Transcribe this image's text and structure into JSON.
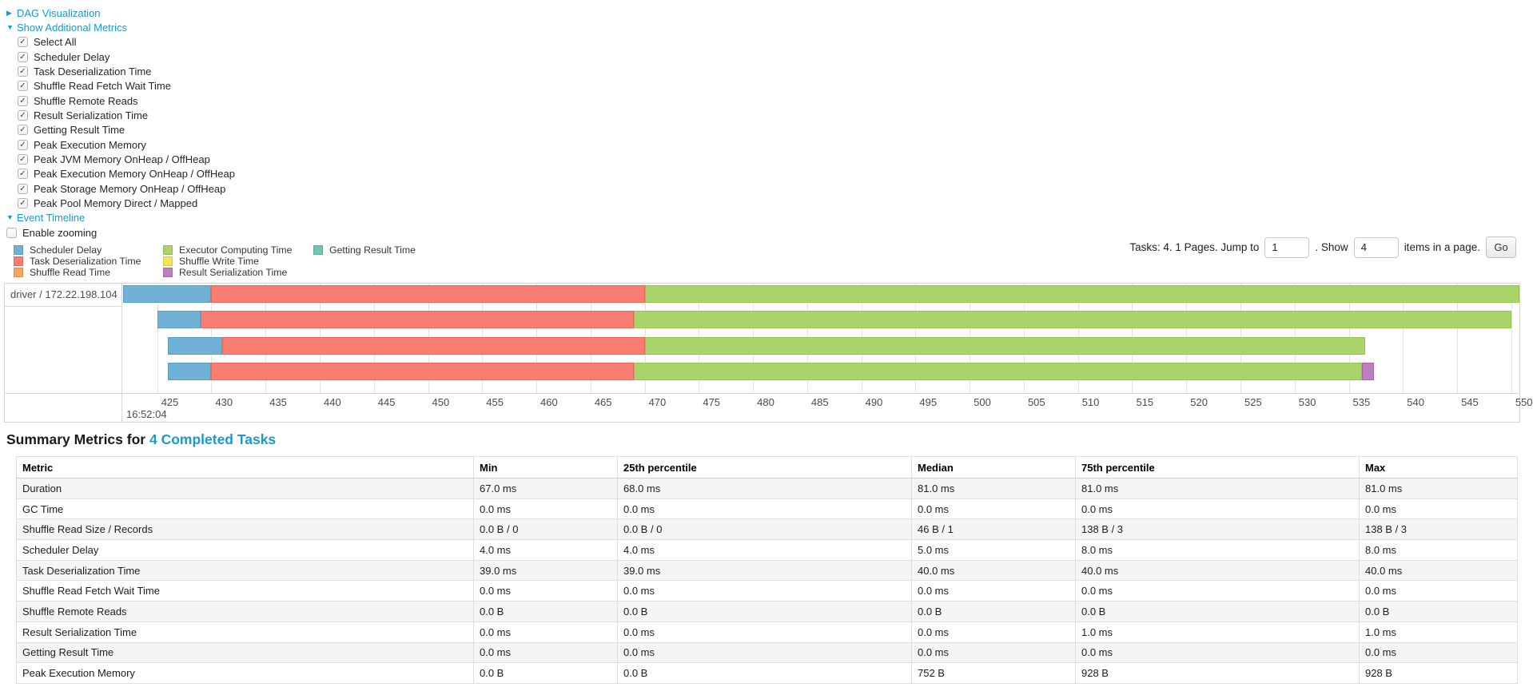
{
  "toggles": {
    "dag": "DAG Visualization",
    "metrics": "Show Additional Metrics",
    "timeline": "Event Timeline"
  },
  "metrics_panel": {
    "items": [
      "Select All",
      "Scheduler Delay",
      "Task Deserialization Time",
      "Shuffle Read Fetch Wait Time",
      "Shuffle Remote Reads",
      "Result Serialization Time",
      "Getting Result Time",
      "Peak Execution Memory",
      "Peak JVM Memory OnHeap / OffHeap",
      "Peak Execution Memory OnHeap / OffHeap",
      "Peak Storage Memory OnHeap / OffHeap",
      "Peak Pool Memory Direct / Mapped"
    ],
    "all_checked": true
  },
  "enable_zooming_label": "Enable zooming",
  "pagination": {
    "prefix": "Tasks: 4. 1 Pages. Jump to",
    "jump_value": "1",
    "show_text": ". Show",
    "page_size_value": "4",
    "suffix": "items in a page.",
    "go_label": "Go"
  },
  "chart_data": {
    "type": "timeline",
    "title": "Event Timeline",
    "group_label": "driver / 172.22.198.104",
    "axis": {
      "min": 421.85,
      "max": 550.75,
      "tick_start": 425,
      "tick_step": 5,
      "tick_end": 550,
      "start_time_label": "16:52:04",
      "unit": "ms within second 16:52:04"
    },
    "colors": {
      "scheduler_delay": {
        "fill": "#6FB2D5",
        "border": "#5B9FC5"
      },
      "task_deserialization": {
        "fill": "#F97D70",
        "border": "#EA675C"
      },
      "shuffle_read": {
        "fill": "#F9A65A",
        "border": "#EC9445"
      },
      "executor_computing": {
        "fill": "#A9D46A",
        "border": "#95C452"
      },
      "shuffle_write": {
        "fill": "#F4E35A",
        "border": "#E2D13F"
      },
      "result_serialization": {
        "fill": "#BC7FC0",
        "border": "#A964AE"
      },
      "getting_result": {
        "fill": "#70C6B2",
        "border": "#5BB29E"
      }
    },
    "legend": {
      "columns": [
        [
          {
            "type": "scheduler_delay",
            "label": "Scheduler Delay",
            "color": "#6FB2D5"
          },
          {
            "type": "task_deserialization",
            "label": "Task Deserialization Time",
            "color": "#F97D70"
          },
          {
            "type": "shuffle_read",
            "label": "Shuffle Read Time",
            "color": "#F9A65A"
          }
        ],
        [
          {
            "type": "executor_computing",
            "label": "Executor Computing Time",
            "color": "#A9D46A"
          },
          {
            "type": "shuffle_write",
            "label": "Shuffle Write Time",
            "color": "#F4E35A"
          },
          {
            "type": "result_serialization",
            "label": "Result Serialization Time",
            "color": "#BC7FC0"
          }
        ],
        [
          {
            "type": "getting_result",
            "label": "Getting Result Time",
            "color": "#70C6B2"
          }
        ]
      ]
    },
    "tasks": [
      {
        "segments": [
          {
            "type": "scheduler_delay",
            "start": 421.5,
            "end": 430
          },
          {
            "type": "task_deserialization",
            "start": 430,
            "end": 470
          },
          {
            "type": "executor_computing",
            "start": 470,
            "end": 551
          }
        ]
      },
      {
        "segments": [
          {
            "type": "scheduler_delay",
            "start": 425,
            "end": 429
          },
          {
            "type": "task_deserialization",
            "start": 429,
            "end": 469
          },
          {
            "type": "executor_computing",
            "start": 469,
            "end": 550
          }
        ]
      },
      {
        "segments": [
          {
            "type": "scheduler_delay",
            "start": 426,
            "end": 431
          },
          {
            "type": "task_deserialization",
            "start": 431,
            "end": 470
          },
          {
            "type": "executor_computing",
            "start": 470,
            "end": 536.5
          }
        ]
      },
      {
        "segments": [
          {
            "type": "scheduler_delay",
            "start": 426,
            "end": 430
          },
          {
            "type": "task_deserialization",
            "start": 430,
            "end": 469
          },
          {
            "type": "executor_computing",
            "start": 469,
            "end": 536.2
          },
          {
            "type": "result_serialization",
            "start": 536.2,
            "end": 537.3
          }
        ]
      }
    ]
  },
  "summary": {
    "title_prefix": "Summary Metrics for",
    "title_link": "4 Completed Tasks"
  },
  "summary_table": {
    "columns": [
      "Metric",
      "Min",
      "25th percentile",
      "Median",
      "75th percentile",
      "Max"
    ],
    "rows": [
      {
        "metric": "Duration",
        "values": [
          "67.0 ms",
          "68.0 ms",
          "81.0 ms",
          "81.0 ms",
          "81.0 ms"
        ]
      },
      {
        "metric": "GC Time",
        "values": [
          "0.0 ms",
          "0.0 ms",
          "0.0 ms",
          "0.0 ms",
          "0.0 ms"
        ]
      },
      {
        "metric": "Shuffle Read Size / Records",
        "values": [
          "0.0 B / 0",
          "0.0 B / 0",
          "46 B / 1",
          "138 B / 3",
          "138 B / 3"
        ]
      },
      {
        "metric": "Scheduler Delay",
        "values": [
          "4.0 ms",
          "4.0 ms",
          "5.0 ms",
          "8.0 ms",
          "8.0 ms"
        ]
      },
      {
        "metric": "Task Deserialization Time",
        "values": [
          "39.0 ms",
          "39.0 ms",
          "40.0 ms",
          "40.0 ms",
          "40.0 ms"
        ]
      },
      {
        "metric": "Shuffle Read Fetch Wait Time",
        "values": [
          "0.0 ms",
          "0.0 ms",
          "0.0 ms",
          "0.0 ms",
          "0.0 ms"
        ]
      },
      {
        "metric": "Shuffle Remote Reads",
        "values": [
          "0.0 B",
          "0.0 B",
          "0.0 B",
          "0.0 B",
          "0.0 B"
        ]
      },
      {
        "metric": "Result Serialization Time",
        "values": [
          "0.0 ms",
          "0.0 ms",
          "0.0 ms",
          "1.0 ms",
          "1.0 ms"
        ]
      },
      {
        "metric": "Getting Result Time",
        "values": [
          "0.0 ms",
          "0.0 ms",
          "0.0 ms",
          "0.0 ms",
          "0.0 ms"
        ]
      },
      {
        "metric": "Peak Execution Memory",
        "values": [
          "0.0 B",
          "0.0 B",
          "752 B",
          "928 B",
          "928 B"
        ]
      }
    ]
  }
}
